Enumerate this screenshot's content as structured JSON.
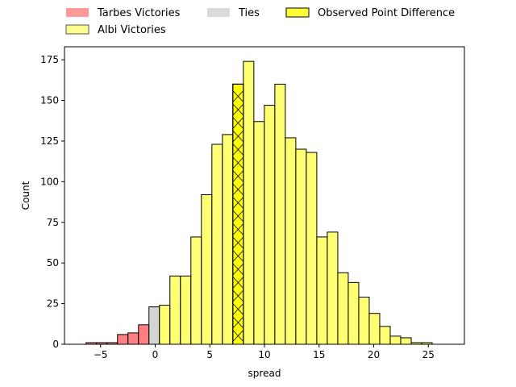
{
  "chart_data": {
    "type": "bar",
    "title": "",
    "xlabel": "spread",
    "ylabel": "Count",
    "xlim": [
      -8.3,
      28.3
    ],
    "ylim": [
      0,
      183
    ],
    "xticks": [
      -5,
      0,
      5,
      10,
      15,
      20,
      25
    ],
    "yticks": [
      0,
      25,
      50,
      75,
      100,
      125,
      150,
      175
    ],
    "legend": {
      "placement": "above-plot",
      "entries": [
        {
          "label": "Tarbes Victories",
          "color": "#ff5555"
        },
        {
          "label": "Albi Victories",
          "color": "#ffff44"
        },
        {
          "label": "Ties",
          "color": "#cccccc"
        },
        {
          "label": "Observed Point Difference",
          "color": "#ffff00"
        }
      ]
    },
    "series": [
      {
        "name": "Tarbes Victories",
        "color": "#ff5555",
        "bins": [
          {
            "x0": -6.33,
            "x1": -5.37,
            "count": 1
          },
          {
            "x0": -5.37,
            "x1": -4.41,
            "count": 1
          },
          {
            "x0": -4.41,
            "x1": -3.45,
            "count": 1
          },
          {
            "x0": -3.45,
            "x1": -2.49,
            "count": 6
          },
          {
            "x0": -2.49,
            "x1": -1.53,
            "count": 7
          },
          {
            "x0": -1.53,
            "x1": -0.57,
            "count": 12
          }
        ]
      },
      {
        "name": "Ties",
        "color": "#cccccc",
        "bins": [
          {
            "x0": -0.57,
            "x1": 0.39,
            "count": 23
          }
        ]
      },
      {
        "name": "Albi Victories",
        "color": "#ffff44",
        "bins": [
          {
            "x0": 0.39,
            "x1": 1.35,
            "count": 24
          },
          {
            "x0": 1.35,
            "x1": 2.31,
            "count": 42
          },
          {
            "x0": 2.31,
            "x1": 3.27,
            "count": 42
          },
          {
            "x0": 3.27,
            "x1": 4.23,
            "count": 66
          },
          {
            "x0": 4.23,
            "x1": 5.19,
            "count": 92
          },
          {
            "x0": 5.19,
            "x1": 6.15,
            "count": 123
          },
          {
            "x0": 6.15,
            "x1": 7.11,
            "count": 129
          },
          {
            "x0": 7.11,
            "x1": 8.07,
            "count": 160
          },
          {
            "x0": 8.07,
            "x1": 9.03,
            "count": 174
          },
          {
            "x0": 9.03,
            "x1": 9.99,
            "count": 137
          },
          {
            "x0": 9.99,
            "x1": 10.95,
            "count": 147
          },
          {
            "x0": 10.95,
            "x1": 11.91,
            "count": 160
          },
          {
            "x0": 11.91,
            "x1": 12.87,
            "count": 127
          },
          {
            "x0": 12.87,
            "x1": 13.83,
            "count": 120
          },
          {
            "x0": 13.83,
            "x1": 14.79,
            "count": 118
          },
          {
            "x0": 14.79,
            "x1": 15.75,
            "count": 66
          },
          {
            "x0": 15.75,
            "x1": 16.71,
            "count": 69
          },
          {
            "x0": 16.71,
            "x1": 17.67,
            "count": 44
          },
          {
            "x0": 17.67,
            "x1": 18.63,
            "count": 38
          },
          {
            "x0": 18.63,
            "x1": 19.59,
            "count": 29
          },
          {
            "x0": 19.59,
            "x1": 20.55,
            "count": 19
          },
          {
            "x0": 20.55,
            "x1": 21.51,
            "count": 11
          },
          {
            "x0": 21.51,
            "x1": 22.47,
            "count": 5
          },
          {
            "x0": 22.47,
            "x1": 23.43,
            "count": 4
          },
          {
            "x0": 23.43,
            "x1": 24.39,
            "count": 1
          },
          {
            "x0": 24.39,
            "x1": 25.35,
            "count": 1
          }
        ]
      },
      {
        "name": "Observed Point Difference",
        "color": "#ffff00",
        "hatch": "x",
        "bins": [
          {
            "x0": 7.11,
            "x1": 8.07,
            "count": 160
          }
        ]
      }
    ]
  }
}
